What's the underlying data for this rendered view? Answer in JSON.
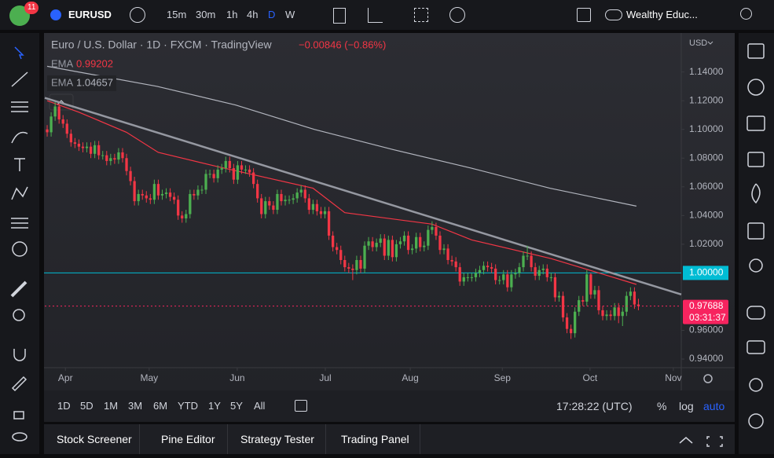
{
  "toolbar": {
    "alerts_badge": "11",
    "symbol": "EURUSD",
    "intervals": [
      "15m",
      "30m",
      "1h",
      "4h",
      "D",
      "W"
    ],
    "layout_name": "Wealthy Educ..."
  },
  "chart_data": {
    "type": "candlestick",
    "title": "Euro / U.S. Dollar · 1D · FXCM · TradingView",
    "change": "−0.00846 (−0.86%)",
    "currency": "USD",
    "up_color": "#4caf50",
    "down_color": "#f23645",
    "x": [
      0,
      1,
      2,
      3,
      4,
      5,
      6,
      7,
      8,
      9,
      10,
      11,
      12,
      13,
      14,
      15,
      16,
      17,
      18,
      19,
      20,
      21,
      22,
      23,
      24,
      25,
      26,
      27,
      28,
      29,
      30,
      31,
      32,
      33,
      34,
      35,
      36,
      37,
      38,
      39,
      40,
      41,
      42,
      43,
      44,
      45,
      46,
      47,
      48,
      49,
      50,
      51,
      52,
      53,
      54,
      55,
      56,
      57,
      58,
      59,
      60,
      61,
      62,
      63,
      64,
      65,
      66,
      67,
      68,
      69,
      70,
      71,
      72,
      73,
      74,
      75,
      76,
      77,
      78,
      79,
      80,
      81,
      82,
      83,
      84,
      85,
      86,
      87,
      88,
      89,
      90,
      91,
      92,
      93,
      94,
      95,
      96,
      97,
      98,
      99,
      100,
      101,
      102,
      103,
      104,
      105,
      106,
      107,
      108,
      109,
      110,
      111,
      112,
      113,
      114,
      115,
      116,
      117,
      118,
      119,
      120,
      121,
      122,
      123,
      124,
      125,
      126,
      127,
      128,
      129,
      130,
      131,
      132,
      133,
      134,
      135,
      136,
      137,
      138,
      139,
      140,
      141,
      142,
      143,
      144,
      145,
      146,
      147,
      148,
      149
    ],
    "open": [
      1.1,
      1.098,
      1.109,
      1.116,
      1.107,
      1.104,
      1.097,
      1.091,
      1.09,
      1.088,
      1.087,
      1.088,
      1.083,
      1.089,
      1.082,
      1.082,
      1.078,
      1.08,
      1.079,
      1.084,
      1.08,
      1.071,
      1.064,
      1.05,
      1.055,
      1.054,
      1.052,
      1.051,
      1.062,
      1.054,
      1.055,
      1.056,
      1.053,
      1.051,
      1.04,
      1.038,
      1.041,
      1.055,
      1.054,
      1.058,
      1.058,
      1.069,
      1.069,
      1.066,
      1.072,
      1.073,
      1.078,
      1.073,
      1.065,
      1.075,
      1.072,
      1.072,
      1.07,
      1.062,
      1.052,
      1.041,
      1.05,
      1.047,
      1.044,
      1.055,
      1.05,
      1.051,
      1.051,
      1.052,
      1.056,
      1.058,
      1.052,
      1.044,
      1.048,
      1.043,
      1.041,
      1.043,
      1.026,
      1.018,
      1.016,
      1.009,
      1.004,
      1.003,
      1.002,
      1.009,
      1.003,
      1.019,
      1.022,
      1.018,
      1.021,
      1.024,
      1.012,
      1.023,
      1.011,
      1.02,
      1.022,
      1.026,
      1.016,
      1.017,
      1.025,
      1.018,
      1.019,
      1.03,
      1.032,
      1.026,
      1.016,
      1.017,
      1.009,
      1.008,
      1.004,
      0.994,
      0.997,
      0.997,
      0.997,
      1.0,
      1.002,
      1.005,
      1.004,
      1.003,
      0.995,
      0.995,
      0.999,
      0.99,
      0.999,
      1.0,
      1.004,
      1.012,
      1.012,
      1.004,
      0.998,
      1.002,
      1.003,
      0.997,
      0.997,
      0.983,
      0.984,
      0.969,
      0.961,
      0.958,
      0.973,
      0.981,
      0.98,
      0.999,
      0.985,
      0.988,
      0.974,
      0.97,
      0.971,
      0.97,
      0.976,
      0.97,
      0.973,
      0.984,
      0.987,
      0.978
    ],
    "high": [
      1.103,
      1.112,
      1.119,
      1.118,
      1.11,
      1.107,
      1.1,
      1.094,
      1.093,
      1.091,
      1.091,
      1.091,
      1.092,
      1.092,
      1.085,
      1.085,
      1.083,
      1.083,
      1.087,
      1.087,
      1.083,
      1.074,
      1.067,
      1.058,
      1.058,
      1.057,
      1.055,
      1.065,
      1.065,
      1.058,
      1.059,
      1.059,
      1.056,
      1.054,
      1.043,
      1.044,
      1.058,
      1.058,
      1.061,
      1.061,
      1.072,
      1.072,
      1.072,
      1.075,
      1.076,
      1.081,
      1.081,
      1.076,
      1.078,
      1.078,
      1.075,
      1.075,
      1.073,
      1.065,
      1.055,
      1.053,
      1.053,
      1.05,
      1.058,
      1.058,
      1.054,
      1.054,
      1.055,
      1.059,
      1.061,
      1.061,
      1.055,
      1.051,
      1.051,
      1.046,
      1.046,
      1.046,
      1.029,
      1.021,
      1.019,
      1.012,
      1.007,
      1.006,
      1.012,
      1.012,
      1.022,
      1.025,
      1.025,
      1.024,
      1.027,
      1.027,
      1.026,
      1.026,
      1.023,
      1.025,
      1.029,
      1.029,
      1.02,
      1.028,
      1.028,
      1.022,
      1.033,
      1.036,
      1.035,
      1.029,
      1.02,
      1.02,
      1.012,
      1.011,
      1.007,
      1.0,
      1.0,
      1.0,
      1.003,
      1.005,
      1.008,
      1.008,
      1.007,
      1.006,
      0.998,
      1.002,
      1.002,
      1.002,
      1.003,
      1.007,
      1.015,
      1.019,
      1.015,
      1.007,
      1.005,
      1.006,
      1.006,
      1.0,
      1.0,
      0.987,
      0.987,
      0.972,
      0.964,
      0.976,
      0.984,
      0.984,
      1.002,
      1.0,
      0.991,
      0.991,
      0.977,
      0.974,
      0.974,
      0.979,
      0.979,
      0.976,
      0.987,
      0.99,
      0.99,
      0.982
    ],
    "low": [
      1.095,
      1.095,
      1.106,
      1.104,
      1.101,
      1.094,
      1.088,
      1.087,
      1.085,
      1.084,
      1.084,
      1.08,
      1.08,
      1.079,
      1.079,
      1.075,
      1.075,
      1.076,
      1.076,
      1.077,
      1.068,
      1.061,
      1.047,
      1.047,
      1.051,
      1.049,
      1.048,
      1.048,
      1.051,
      1.051,
      1.052,
      1.05,
      1.048,
      1.037,
      1.035,
      1.035,
      1.038,
      1.051,
      1.051,
      1.055,
      1.055,
      1.066,
      1.063,
      1.063,
      1.069,
      1.07,
      1.07,
      1.062,
      1.062,
      1.069,
      1.069,
      1.067,
      1.059,
      1.049,
      1.038,
      1.038,
      1.044,
      1.041,
      1.041,
      1.047,
      1.047,
      1.048,
      1.048,
      1.049,
      1.053,
      1.049,
      1.041,
      1.041,
      1.04,
      1.038,
      1.038,
      1.023,
      1.015,
      1.013,
      1.006,
      1.001,
      1.0,
      0.995,
      0.999,
      1.0,
      1.0,
      1.016,
      1.015,
      1.015,
      1.018,
      1.009,
      1.009,
      1.008,
      1.008,
      1.017,
      1.019,
      1.013,
      1.013,
      1.014,
      1.015,
      1.015,
      1.016,
      1.027,
      1.023,
      1.013,
      1.013,
      1.006,
      1.005,
      1.001,
      0.991,
      0.991,
      0.994,
      0.994,
      0.994,
      0.997,
      0.999,
      1.001,
      1.0,
      0.992,
      0.992,
      0.992,
      0.987,
      0.987,
      0.996,
      0.997,
      1.001,
      1.009,
      1.001,
      0.995,
      0.995,
      0.999,
      0.994,
      0.994,
      0.98,
      0.98,
      0.966,
      0.958,
      0.954,
      0.955,
      0.97,
      0.977,
      0.977,
      0.982,
      0.982,
      0.971,
      0.967,
      0.967,
      0.967,
      0.967,
      0.965,
      0.963,
      0.97,
      0.981,
      0.975,
      0.974
    ],
    "close": [
      1.098,
      1.109,
      1.116,
      1.107,
      1.104,
      1.097,
      1.091,
      1.09,
      1.088,
      1.087,
      1.088,
      1.083,
      1.089,
      1.082,
      1.082,
      1.078,
      1.08,
      1.079,
      1.084,
      1.08,
      1.071,
      1.064,
      1.05,
      1.055,
      1.054,
      1.052,
      1.051,
      1.062,
      1.054,
      1.055,
      1.056,
      1.053,
      1.051,
      1.04,
      1.038,
      1.041,
      1.055,
      1.054,
      1.058,
      1.058,
      1.069,
      1.069,
      1.066,
      1.072,
      1.073,
      1.078,
      1.073,
      1.065,
      1.075,
      1.072,
      1.072,
      1.07,
      1.062,
      1.052,
      1.041,
      1.05,
      1.047,
      1.044,
      1.055,
      1.05,
      1.051,
      1.051,
      1.052,
      1.056,
      1.058,
      1.052,
      1.044,
      1.048,
      1.043,
      1.041,
      1.043,
      1.026,
      1.018,
      1.016,
      1.009,
      1.004,
      1.003,
      1.002,
      1.009,
      1.003,
      1.019,
      1.022,
      1.018,
      1.021,
      1.024,
      1.012,
      1.023,
      1.011,
      1.02,
      1.022,
      1.026,
      1.016,
      1.017,
      1.025,
      1.018,
      1.019,
      1.03,
      1.032,
      1.026,
      1.016,
      1.017,
      1.009,
      1.008,
      1.004,
      0.994,
      0.997,
      0.997,
      0.997,
      1.0,
      1.002,
      1.005,
      1.004,
      1.003,
      0.995,
      0.995,
      0.999,
      0.99,
      0.999,
      1.0,
      1.004,
      1.012,
      1.012,
      1.004,
      0.998,
      1.002,
      1.003,
      0.997,
      0.997,
      0.983,
      0.984,
      0.969,
      0.961,
      0.958,
      0.973,
      0.981,
      0.98,
      0.999,
      0.985,
      0.988,
      0.974,
      0.97,
      0.971,
      0.97,
      0.976,
      0.97,
      0.973,
      0.984,
      0.987,
      0.978,
      0.97688
    ],
    "indicators": [
      {
        "name": "EMA",
        "color": "#f23645",
        "x": [
          0,
          8,
          20,
          28,
          43,
          67,
          75,
          97,
          107,
          127,
          139,
          148.5
        ],
        "values": [
          1.12,
          1.112,
          1.098,
          1.084,
          1.074,
          1.059,
          1.042,
          1.034,
          1.023,
          1.01,
          1.0,
          0.99202
        ]
      },
      {
        "name": "EMA",
        "color": "#b2b5be",
        "x": [
          0,
          27.7,
          47.5,
          67.3,
          87.1,
          106.9,
          126.7,
          148.5
        ],
        "values": [
          1.144,
          1.13,
          1.117,
          1.1,
          1.086,
          1.073,
          1.059,
          1.04657
        ]
      }
    ],
    "trendline": {
      "color": "#9598a1",
      "x": [
        -0.6,
        159.8
      ],
      "values": [
        1.122,
        0.985
      ]
    },
    "level_line": {
      "value": 1,
      "label": "1.00000",
      "color": "#00bcd4"
    },
    "last_price": {
      "value": 0.97688,
      "countdown": "03:31:37",
      "color": "#f7245f"
    },
    "xlim": [
      -0.6,
      159.8
    ],
    "ylim": [
      0.934,
      1.165
    ],
    "xticks": [
      {
        "value": 4.6,
        "label": "Apr"
      },
      {
        "value": 25.7,
        "label": "May"
      },
      {
        "value": 47.9,
        "label": "Jun"
      },
      {
        "value": 70.1,
        "label": "Jul"
      },
      {
        "value": 91.5,
        "label": "Aug"
      },
      {
        "value": 114.7,
        "label": "Sep"
      },
      {
        "value": 136.8,
        "label": "Oct"
      },
      {
        "value": 157.8,
        "label": "Nov"
      }
    ],
    "yticks": [
      {
        "value": 0.94,
        "label": "0.94000"
      },
      {
        "value": 0.96,
        "label": "0.96000"
      },
      {
        "value": 1.02,
        "label": "1.02000"
      },
      {
        "value": 1.04,
        "label": "1.04000"
      },
      {
        "value": 1.06,
        "label": "1.06000"
      },
      {
        "value": 1.08,
        "label": "1.08000"
      },
      {
        "value": 1.1,
        "label": "1.10000"
      },
      {
        "value": 1.12,
        "label": "1.12000"
      },
      {
        "value": 1.14,
        "label": "1.14000"
      }
    ]
  },
  "range_bar": {
    "ranges": [
      "1D",
      "5D",
      "1M",
      "3M",
      "6M",
      "YTD",
      "1Y",
      "5Y",
      "All"
    ],
    "clock": "17:28:22 (UTC)",
    "options": [
      "%",
      "log",
      "auto"
    ]
  },
  "bottom_tabs": [
    "Stock Screener",
    "Pine Editor",
    "Strategy Tester",
    "Trading Panel"
  ]
}
